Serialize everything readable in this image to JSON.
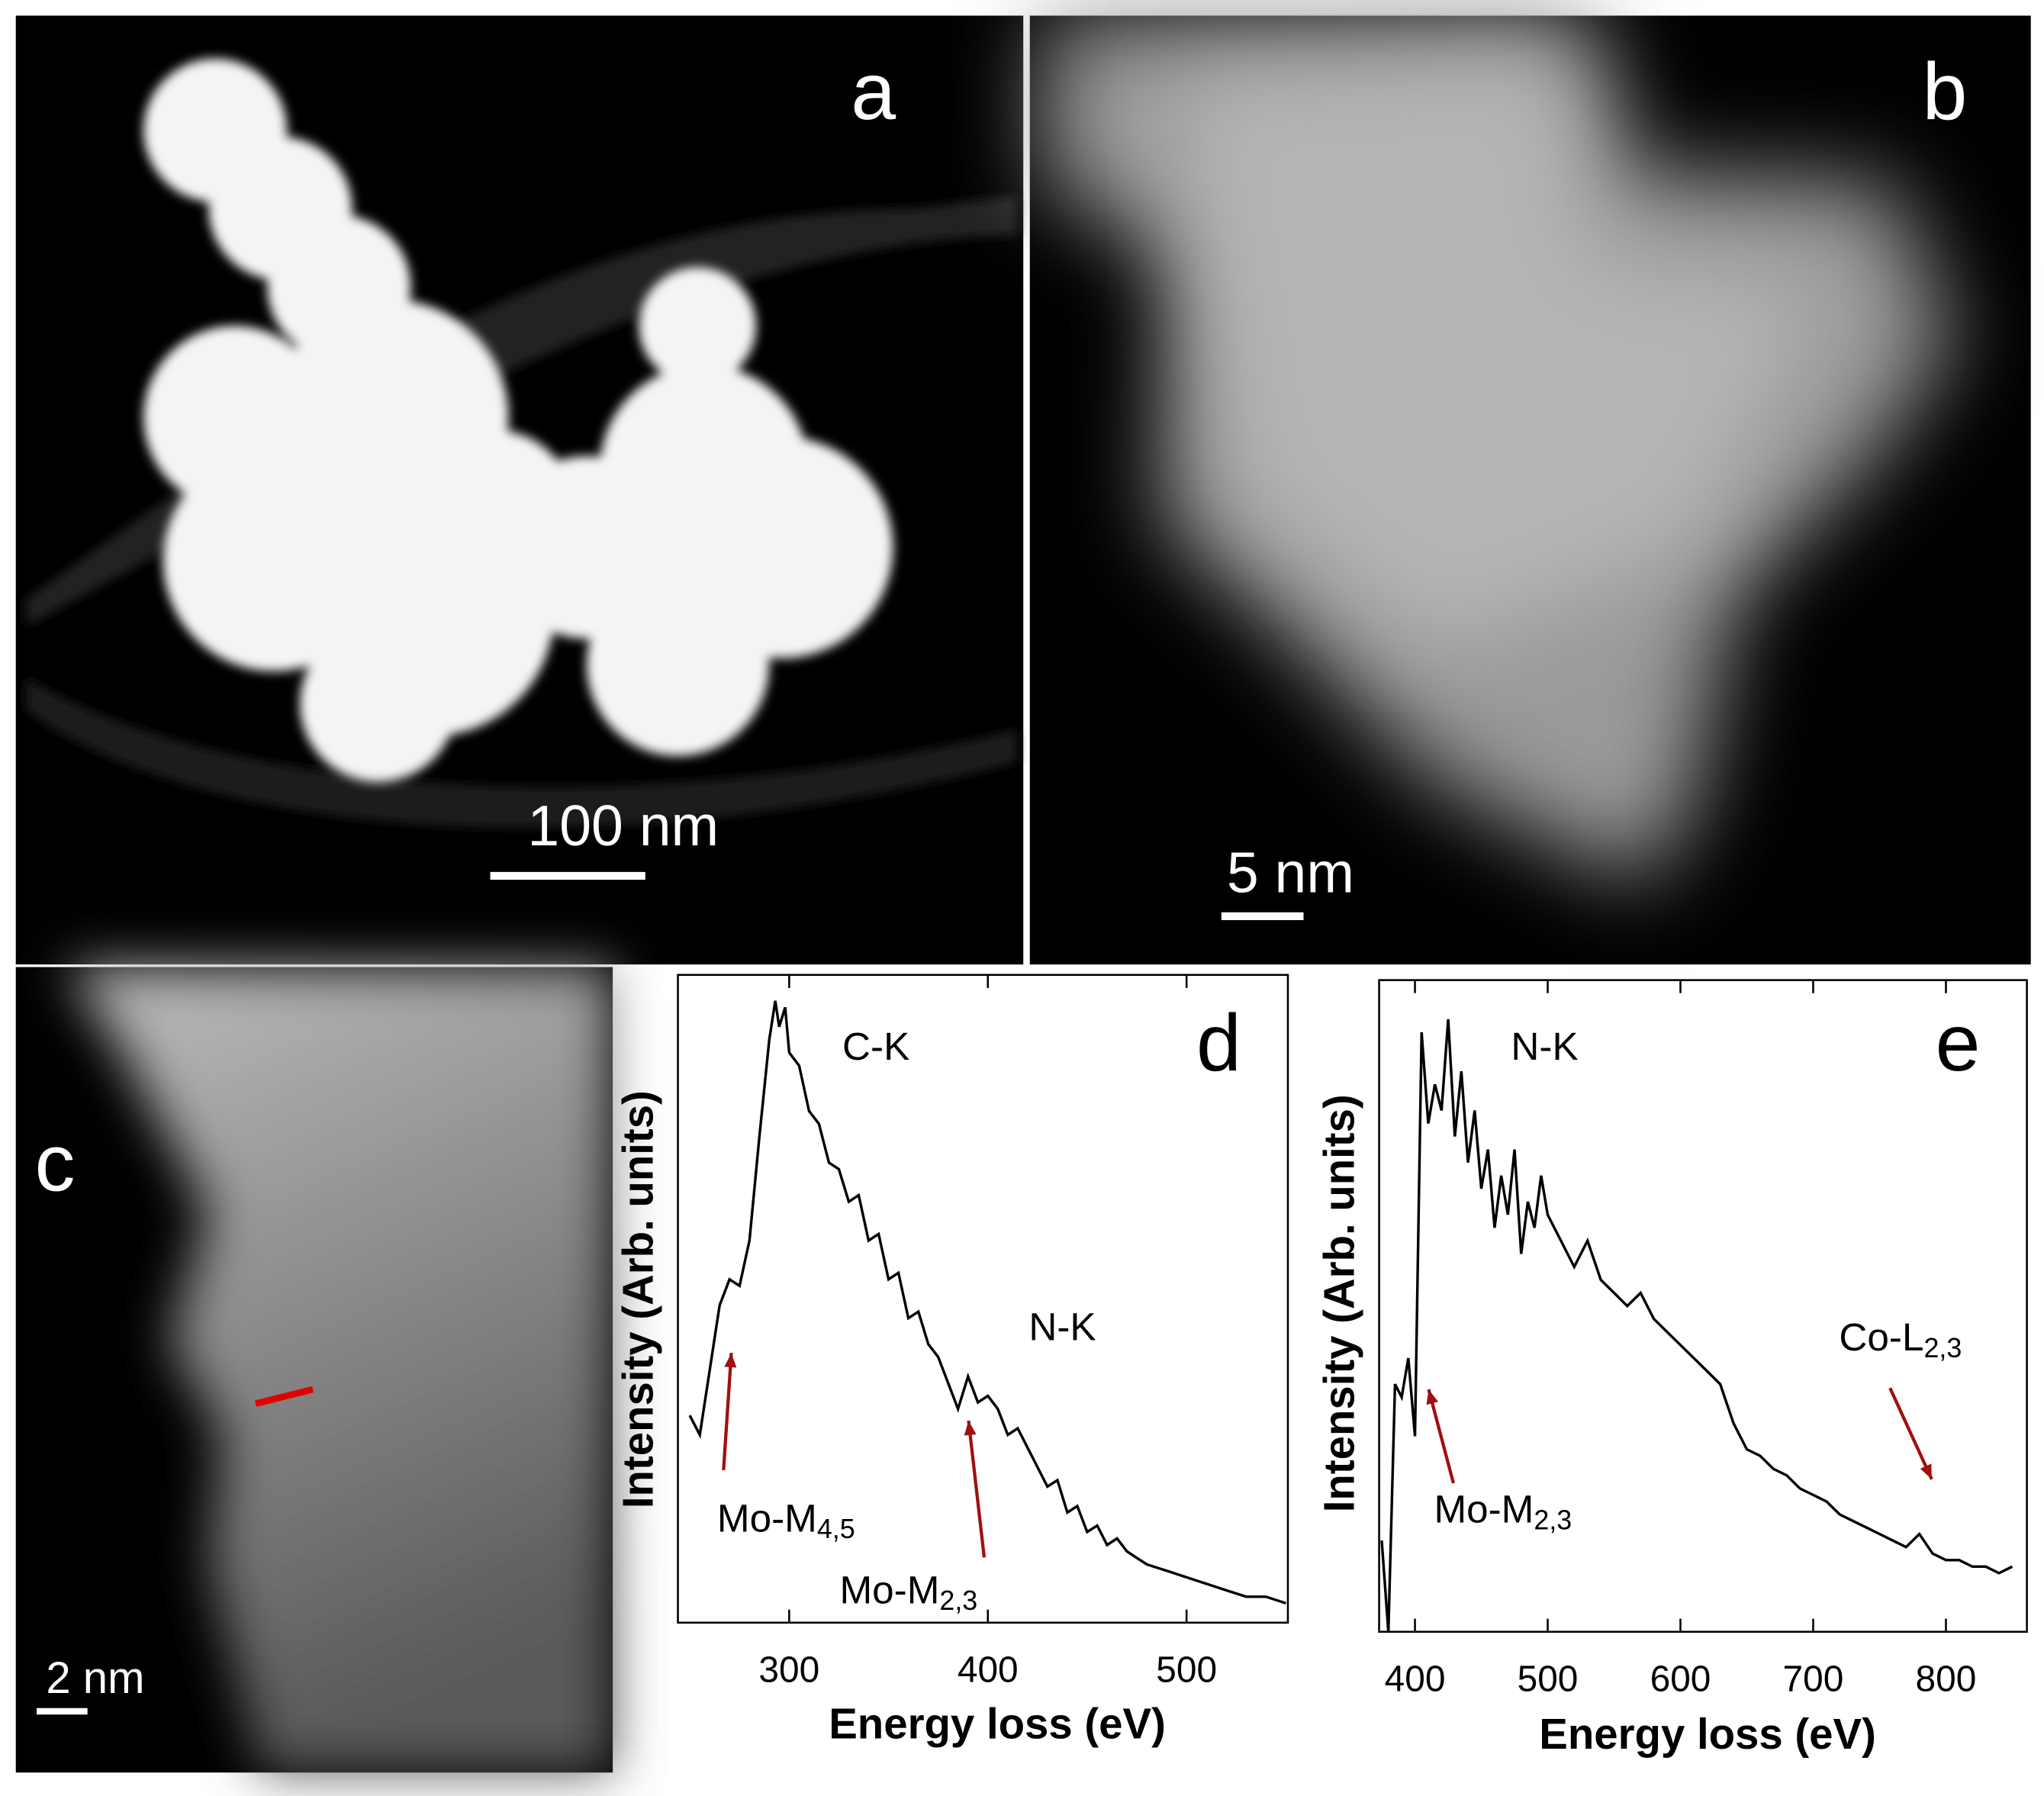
{
  "figure": {
    "panels": [
      {
        "label": "a",
        "scale_bar": "100 nm"
      },
      {
        "label": "b",
        "scale_bar": "5 nm"
      },
      {
        "label": "c",
        "scale_bar": "2 nm"
      }
    ]
  },
  "chart_data": [
    {
      "type": "line",
      "panel_label": "d",
      "x_label": "Energy loss (eV)",
      "y_label": "Intensity (Arb. units)",
      "xlim": [
        244,
        551
      ],
      "ylim": [
        0,
        100
      ],
      "xticks": [
        300,
        400,
        500
      ],
      "x": [
        250,
        255,
        260,
        265,
        270,
        275,
        280,
        285,
        290,
        293,
        295,
        298,
        300,
        305,
        310,
        315,
        320,
        325,
        330,
        335,
        340,
        345,
        350,
        355,
        360,
        365,
        370,
        375,
        380,
        385,
        390,
        395,
        400,
        405,
        410,
        415,
        420,
        425,
        430,
        435,
        440,
        445,
        450,
        455,
        460,
        465,
        470,
        475,
        480,
        490,
        500,
        510,
        520,
        530,
        540,
        550
      ],
      "series": [
        {
          "color": "#000000",
          "values": [
            32,
            29,
            39,
            49,
            53,
            52,
            59,
            75,
            90,
            96,
            92,
            95,
            88,
            86,
            79,
            77,
            71,
            70,
            65,
            66,
            59,
            60,
            53,
            54,
            47,
            48,
            43,
            41,
            37,
            33,
            38,
            34,
            35,
            33,
            29,
            30,
            27,
            24,
            21,
            22,
            17,
            18,
            14,
            15,
            12,
            13,
            11,
            10,
            9,
            8,
            7,
            6,
            5,
            4,
            4,
            3
          ]
        }
      ],
      "annotations": [
        {
          "text": "C-K"
        },
        {
          "text": "N-K"
        },
        {
          "text": "Mo-M",
          "sub": "4,5"
        },
        {
          "text": "Mo-M",
          "sub": "2,3"
        }
      ]
    },
    {
      "type": "line",
      "panel_label": "e",
      "x_label": "Energy loss (eV)",
      "y_label": "Intensity (Arb. units)",
      "xlim": [
        373,
        861
      ],
      "ylim": [
        0,
        100
      ],
      "xticks": [
        400,
        500,
        600,
        700,
        800
      ],
      "x": [
        375,
        380,
        385,
        390,
        395,
        400,
        405,
        410,
        415,
        420,
        425,
        430,
        435,
        440,
        445,
        450,
        455,
        460,
        465,
        470,
        475,
        480,
        485,
        490,
        495,
        500,
        510,
        520,
        530,
        540,
        550,
        560,
        570,
        580,
        590,
        600,
        610,
        620,
        630,
        640,
        650,
        660,
        670,
        680,
        690,
        700,
        710,
        720,
        730,
        740,
        750,
        760,
        770,
        780,
        790,
        800,
        810,
        820,
        830,
        840,
        850
      ],
      "series": [
        {
          "color": "#000000",
          "values": [
            14,
            0,
            38,
            36,
            42,
            30,
            92,
            78,
            84,
            80,
            94,
            76,
            86,
            72,
            80,
            68,
            74,
            62,
            70,
            64,
            74,
            58,
            66,
            62,
            70,
            64,
            60,
            56,
            60,
            54,
            52,
            50,
            52,
            48,
            46,
            44,
            42,
            40,
            38,
            32,
            28,
            27,
            25,
            24,
            22,
            21,
            20,
            18,
            17,
            16,
            15,
            14,
            13,
            15,
            12,
            11,
            11,
            10,
            10,
            9,
            10
          ]
        }
      ],
      "annotations": [
        {
          "text": "N-K"
        },
        {
          "text": "Mo-M",
          "sub": "2,3"
        },
        {
          "text": "Co-L",
          "sub": "2,3"
        }
      ]
    }
  ]
}
